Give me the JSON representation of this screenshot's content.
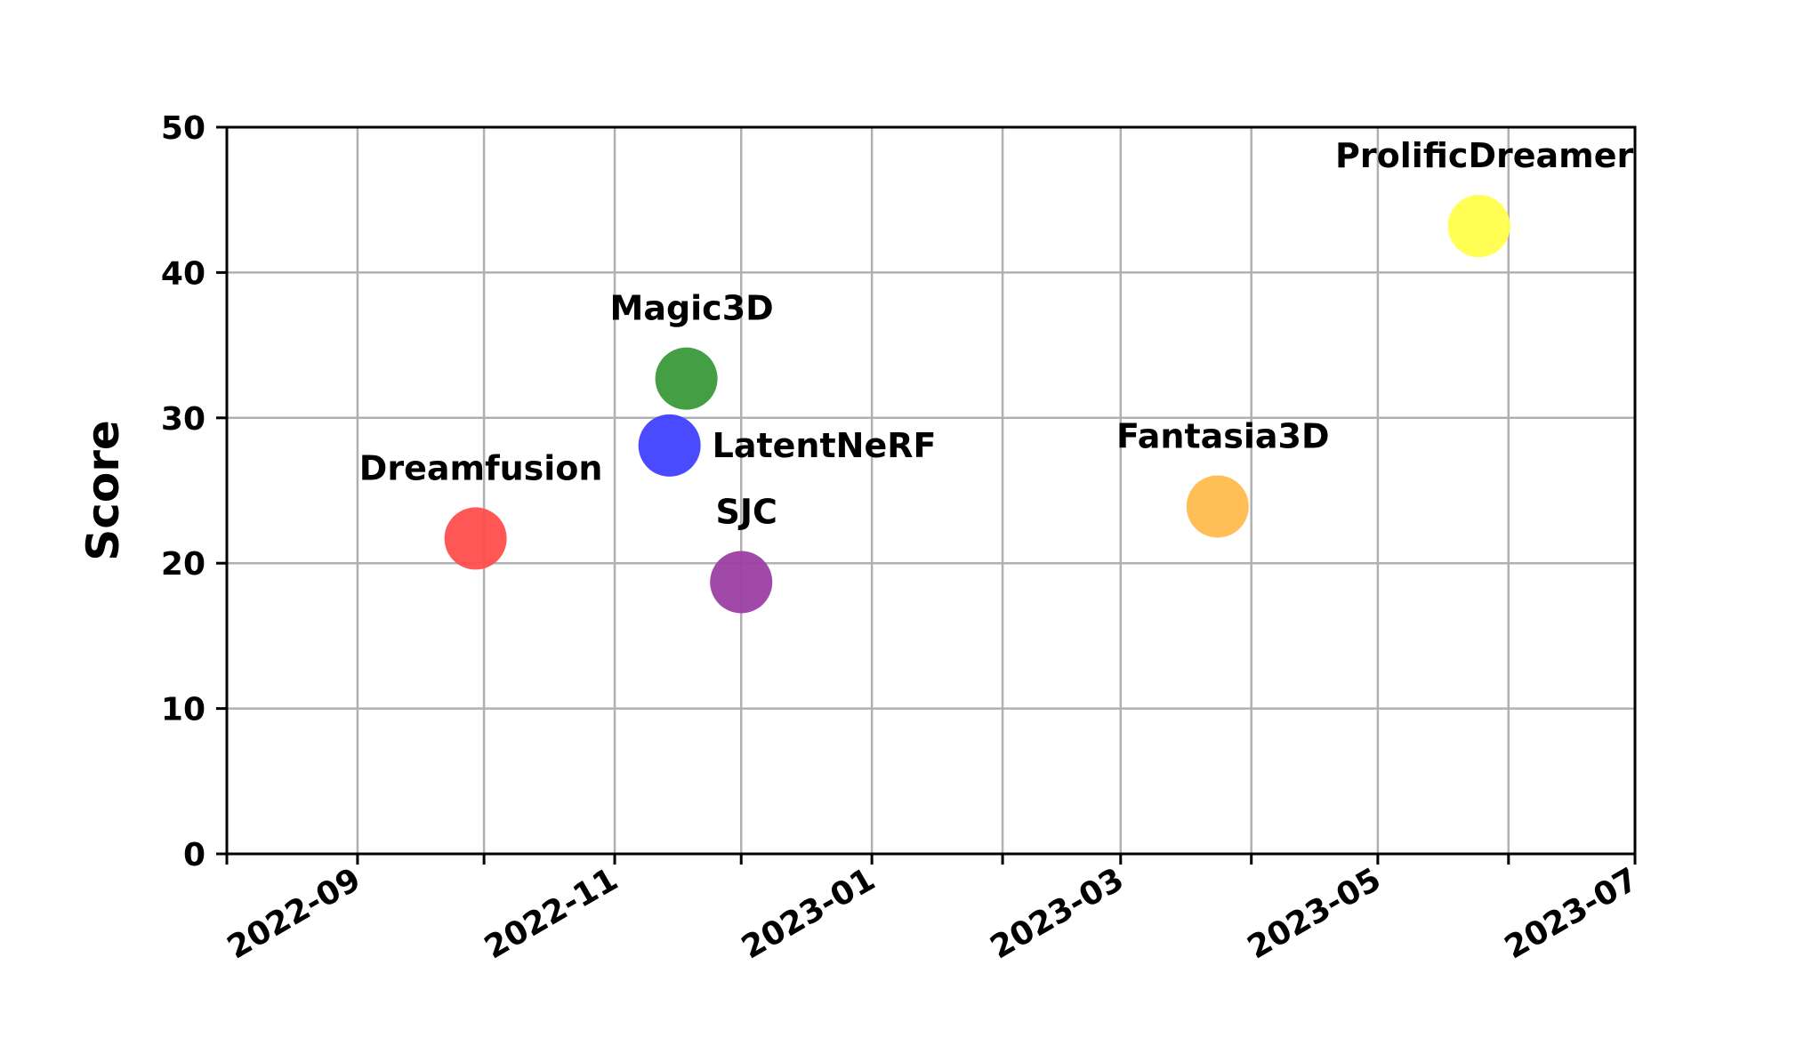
{
  "chart_data": {
    "type": "scatter",
    "title": "",
    "xlabel": "",
    "ylabel": "Score",
    "x_axis_type": "date",
    "xlim": [
      "2022-08-01",
      "2023-07-01"
    ],
    "ylim": [
      0,
      50
    ],
    "x_ticks": [
      "2022-08-01",
      "2022-09-01",
      "2022-10-01",
      "2022-11-01",
      "2022-12-01",
      "2023-01-01",
      "2023-02-01",
      "2023-03-01",
      "2023-04-01",
      "2023-05-01",
      "2023-06-01",
      "2023-07-01"
    ],
    "x_tick_labels": [
      "",
      "2022-09",
      "",
      "2022-11",
      "",
      "2023-01",
      "",
      "2023-03",
      "",
      "2023-05",
      "",
      "2023-07"
    ],
    "y_ticks": [
      0,
      10,
      20,
      30,
      40,
      50
    ],
    "y_tick_labels": [
      "0",
      "10",
      "20",
      "30",
      "40",
      "50"
    ],
    "grid": true,
    "points": [
      {
        "label": "Dreamfusion",
        "x": "2022-09-29",
        "y": 21.7,
        "color": "#ff4d4d",
        "label_pos": "above"
      },
      {
        "label": "Magic3D",
        "x": "2022-11-18",
        "y": 32.7,
        "color": "#3a9a3a",
        "label_pos": "above"
      },
      {
        "label": "LatentNeRF",
        "x": "2022-11-14",
        "y": 28.1,
        "color": "#4040ff",
        "label_pos": "right"
      },
      {
        "label": "SJC",
        "x": "2022-12-01",
        "y": 18.7,
        "color": "#9b3fa3",
        "label_pos": "above"
      },
      {
        "label": "Fantasia3D",
        "x": "2023-03-24",
        "y": 23.9,
        "color": "#ffbb4d",
        "label_pos": "above"
      },
      {
        "label": "ProlificDreamer",
        "x": "2023-05-25",
        "y": 43.2,
        "color": "#ffff4d",
        "label_pos": "above"
      }
    ]
  }
}
